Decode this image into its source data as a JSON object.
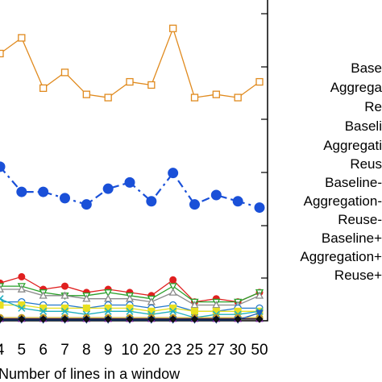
{
  "chart_data": {
    "type": "line",
    "xlabel": "Number of lines in a window",
    "ylabel": "",
    "categories": [
      "4",
      "5",
      "6",
      "7",
      "8",
      "9",
      "10",
      "20",
      "23",
      "25",
      "27",
      "30",
      "50"
    ],
    "grid": false,
    "legend_position": "right",
    "legend_labels": [
      "Base",
      "Aggrega",
      "Re",
      "Baseli",
      "Aggregati",
      "Reus",
      "Baseline-",
      "Aggregation-",
      "Reuse-",
      "Baseline+",
      "Aggregation+",
      "Reuse+"
    ],
    "series": [
      {
        "color": "#e08a1e",
        "marker": "square-open",
        "dash": "solid",
        "values": [
          85,
          90,
          74,
          79,
          72,
          71,
          76,
          75,
          93,
          71,
          72,
          71,
          76
        ]
      },
      {
        "color": "#1a50d8",
        "marker": "circle-filled",
        "dash": "dashdot",
        "values": [
          49,
          41,
          41,
          39,
          37,
          42,
          44,
          38,
          47,
          37,
          40,
          38,
          36
        ]
      },
      {
        "color": "#e02020",
        "marker": "circle-filled",
        "dash": "solid",
        "values": [
          12,
          14,
          10,
          11,
          9,
          10,
          9,
          8,
          13,
          6,
          7,
          6,
          9
        ]
      },
      {
        "color": "#2aa02a",
        "marker": "triangle-down-open",
        "dash": "solid",
        "values": [
          11,
          11,
          9,
          8,
          8,
          9,
          8,
          7,
          11,
          6,
          6,
          6,
          9
        ]
      },
      {
        "color": "#8a8a8a",
        "marker": "triangle-open",
        "dash": "solid",
        "values": [
          10,
          10,
          8,
          8,
          7,
          7,
          7,
          6,
          9,
          5,
          5,
          5,
          8
        ]
      },
      {
        "color": "#2277cc",
        "marker": "circle-open",
        "dash": "solid",
        "values": [
          6,
          6,
          5,
          5,
          4,
          5,
          5,
          4,
          5,
          3,
          3,
          4,
          4
        ]
      },
      {
        "color": "#e8e020",
        "marker": "square-filled",
        "dash": "solid",
        "values": [
          5,
          5,
          4,
          4,
          4,
          4,
          4,
          3,
          4,
          3,
          3,
          3,
          3
        ]
      },
      {
        "color": "#20b0c0",
        "marker": "x",
        "dash": "solid",
        "values": [
          7,
          4,
          3,
          3,
          2,
          3,
          3,
          2,
          3,
          1,
          2,
          2,
          3
        ]
      },
      {
        "color": "#c0a020",
        "marker": "circle-filled",
        "dash": "solid",
        "values": [
          1,
          1,
          1,
          1,
          1,
          1,
          1,
          1,
          1,
          1,
          1,
          1,
          1
        ]
      },
      {
        "color": "#7a1fa0",
        "marker": "triangle-filled",
        "dash": "solid",
        "values": [
          0.6,
          0.6,
          0.6,
          0.6,
          0.6,
          0.6,
          0.6,
          0.6,
          0.6,
          0.6,
          0.6,
          0.6,
          0.6
        ]
      },
      {
        "color": "#2060c0",
        "marker": "triangle-down-filled",
        "dash": "solid",
        "values": [
          0.3,
          0.3,
          0.3,
          0.3,
          0.3,
          0.3,
          0.3,
          0.3,
          0.3,
          0.3,
          0.3,
          0.3,
          2.5
        ]
      },
      {
        "color": "#101010",
        "marker": "diamond-filled",
        "dash": "solid",
        "values": [
          0.5,
          0.5,
          0.5,
          0.5,
          0.5,
          0.5,
          0.5,
          0.5,
          0.5,
          0.5,
          0.5,
          0.5,
          0.5
        ]
      }
    ],
    "ylim": [
      0,
      100
    ]
  }
}
